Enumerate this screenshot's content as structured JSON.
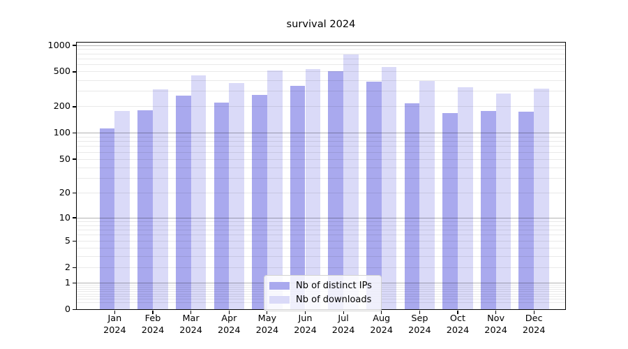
{
  "title": "survival 2024",
  "chart_data": {
    "type": "bar",
    "title": "survival 2024",
    "y_scale": "log10(1+x)",
    "grid": "minor and major horizontal gridlines, drawn over bars",
    "legend_position": "lower center",
    "x_tick_year": "2024",
    "categories": [
      "Jan",
      "Feb",
      "Mar",
      "Apr",
      "May",
      "Jun",
      "Jul",
      "Aug",
      "Sep",
      "Oct",
      "Nov",
      "Dec"
    ],
    "y_ticks": [
      0,
      1,
      2,
      5,
      10,
      20,
      50,
      100,
      200,
      500,
      1000
    ],
    "ylim": [
      0,
      1065
    ],
    "series": [
      {
        "name": "Nb of distinct IPs",
        "color": "#a9a9ee",
        "values": [
          114,
          183,
          268,
          224,
          274,
          344,
          505,
          386,
          218,
          168,
          180,
          175
        ]
      },
      {
        "name": "Nb of downloads",
        "color": "#dadaf8",
        "values": [
          178,
          316,
          452,
          376,
          520,
          537,
          784,
          570,
          391,
          331,
          283,
          322
        ]
      }
    ]
  },
  "colors": {
    "major_grid": "#b0b0b0",
    "minor_grid": "#e9e9e9",
    "axis": "#000000",
    "background": "#ffffff"
  }
}
